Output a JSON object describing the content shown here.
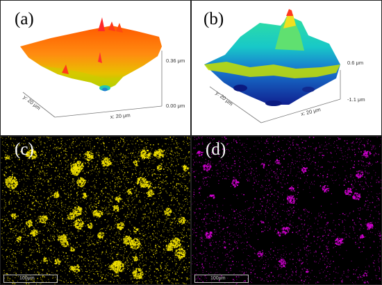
{
  "panels": {
    "a": {
      "label": "(a)",
      "y_axis": "y: 20 μm",
      "x_axis": "x: 20 μm",
      "z_max": "0.36 μm",
      "z_min": "0.00 μm"
    },
    "b": {
      "label": "(b)",
      "y_axis": "y: 20 μm",
      "x_axis": "x: 20 μm",
      "z_max": "0.6 μm",
      "z_min": "-1.1 μm"
    },
    "c": {
      "label": "(c)",
      "scale_bar": "100μm",
      "dot_color": "#f0e000"
    },
    "d": {
      "label": "(d)",
      "scale_bar": "100μm",
      "dot_color": "#d400d4"
    }
  }
}
